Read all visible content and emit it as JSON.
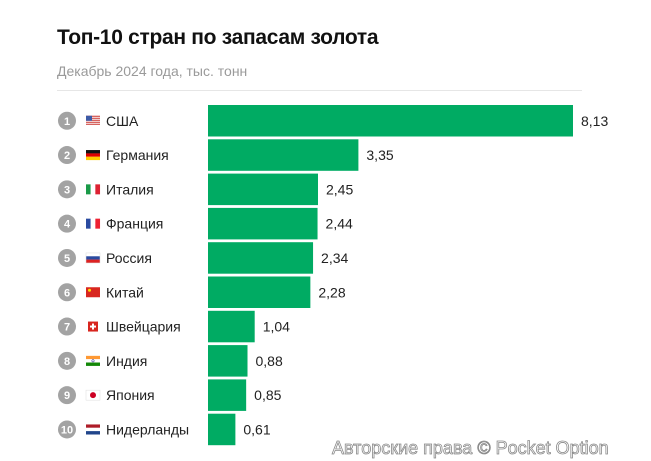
{
  "title": "Топ-10 стран по запасам золота",
  "subtitle": "Декабрь 2024 года, тыс. тонн",
  "watermark": "Авторские права © Pocket Option",
  "chart_data": {
    "type": "bar",
    "orientation": "horizontal",
    "title": "Топ-10 стран по запасам золота",
    "subtitle": "Декабрь 2024 года, тыс. тонн",
    "categories": [
      "США",
      "Германия",
      "Италия",
      "Франция",
      "Россия",
      "Китай",
      "Швейцария",
      "Индия",
      "Япония",
      "Нидерланды"
    ],
    "ranks": [
      "1",
      "2",
      "3",
      "4",
      "5",
      "6",
      "7",
      "8",
      "9",
      "10"
    ],
    "flags": [
      "flag-us",
      "flag-de",
      "flag-it",
      "flag-fr",
      "flag-ru",
      "flag-cn",
      "flag-ch",
      "flag-in",
      "flag-jp",
      "flag-nl"
    ],
    "values": [
      8.13,
      3.35,
      2.45,
      2.44,
      2.34,
      2.28,
      1.04,
      0.88,
      0.85,
      0.61
    ],
    "value_labels": [
      "8,13",
      "3,35",
      "2,45",
      "2,44",
      "2,34",
      "2,28",
      "1,04",
      "0,88",
      "0,85",
      "0,61"
    ],
    "xlim": [
      0,
      8.13
    ],
    "grid": false,
    "bar_color": "#00ab63",
    "rank_badge_color": "#a3a3a3"
  }
}
